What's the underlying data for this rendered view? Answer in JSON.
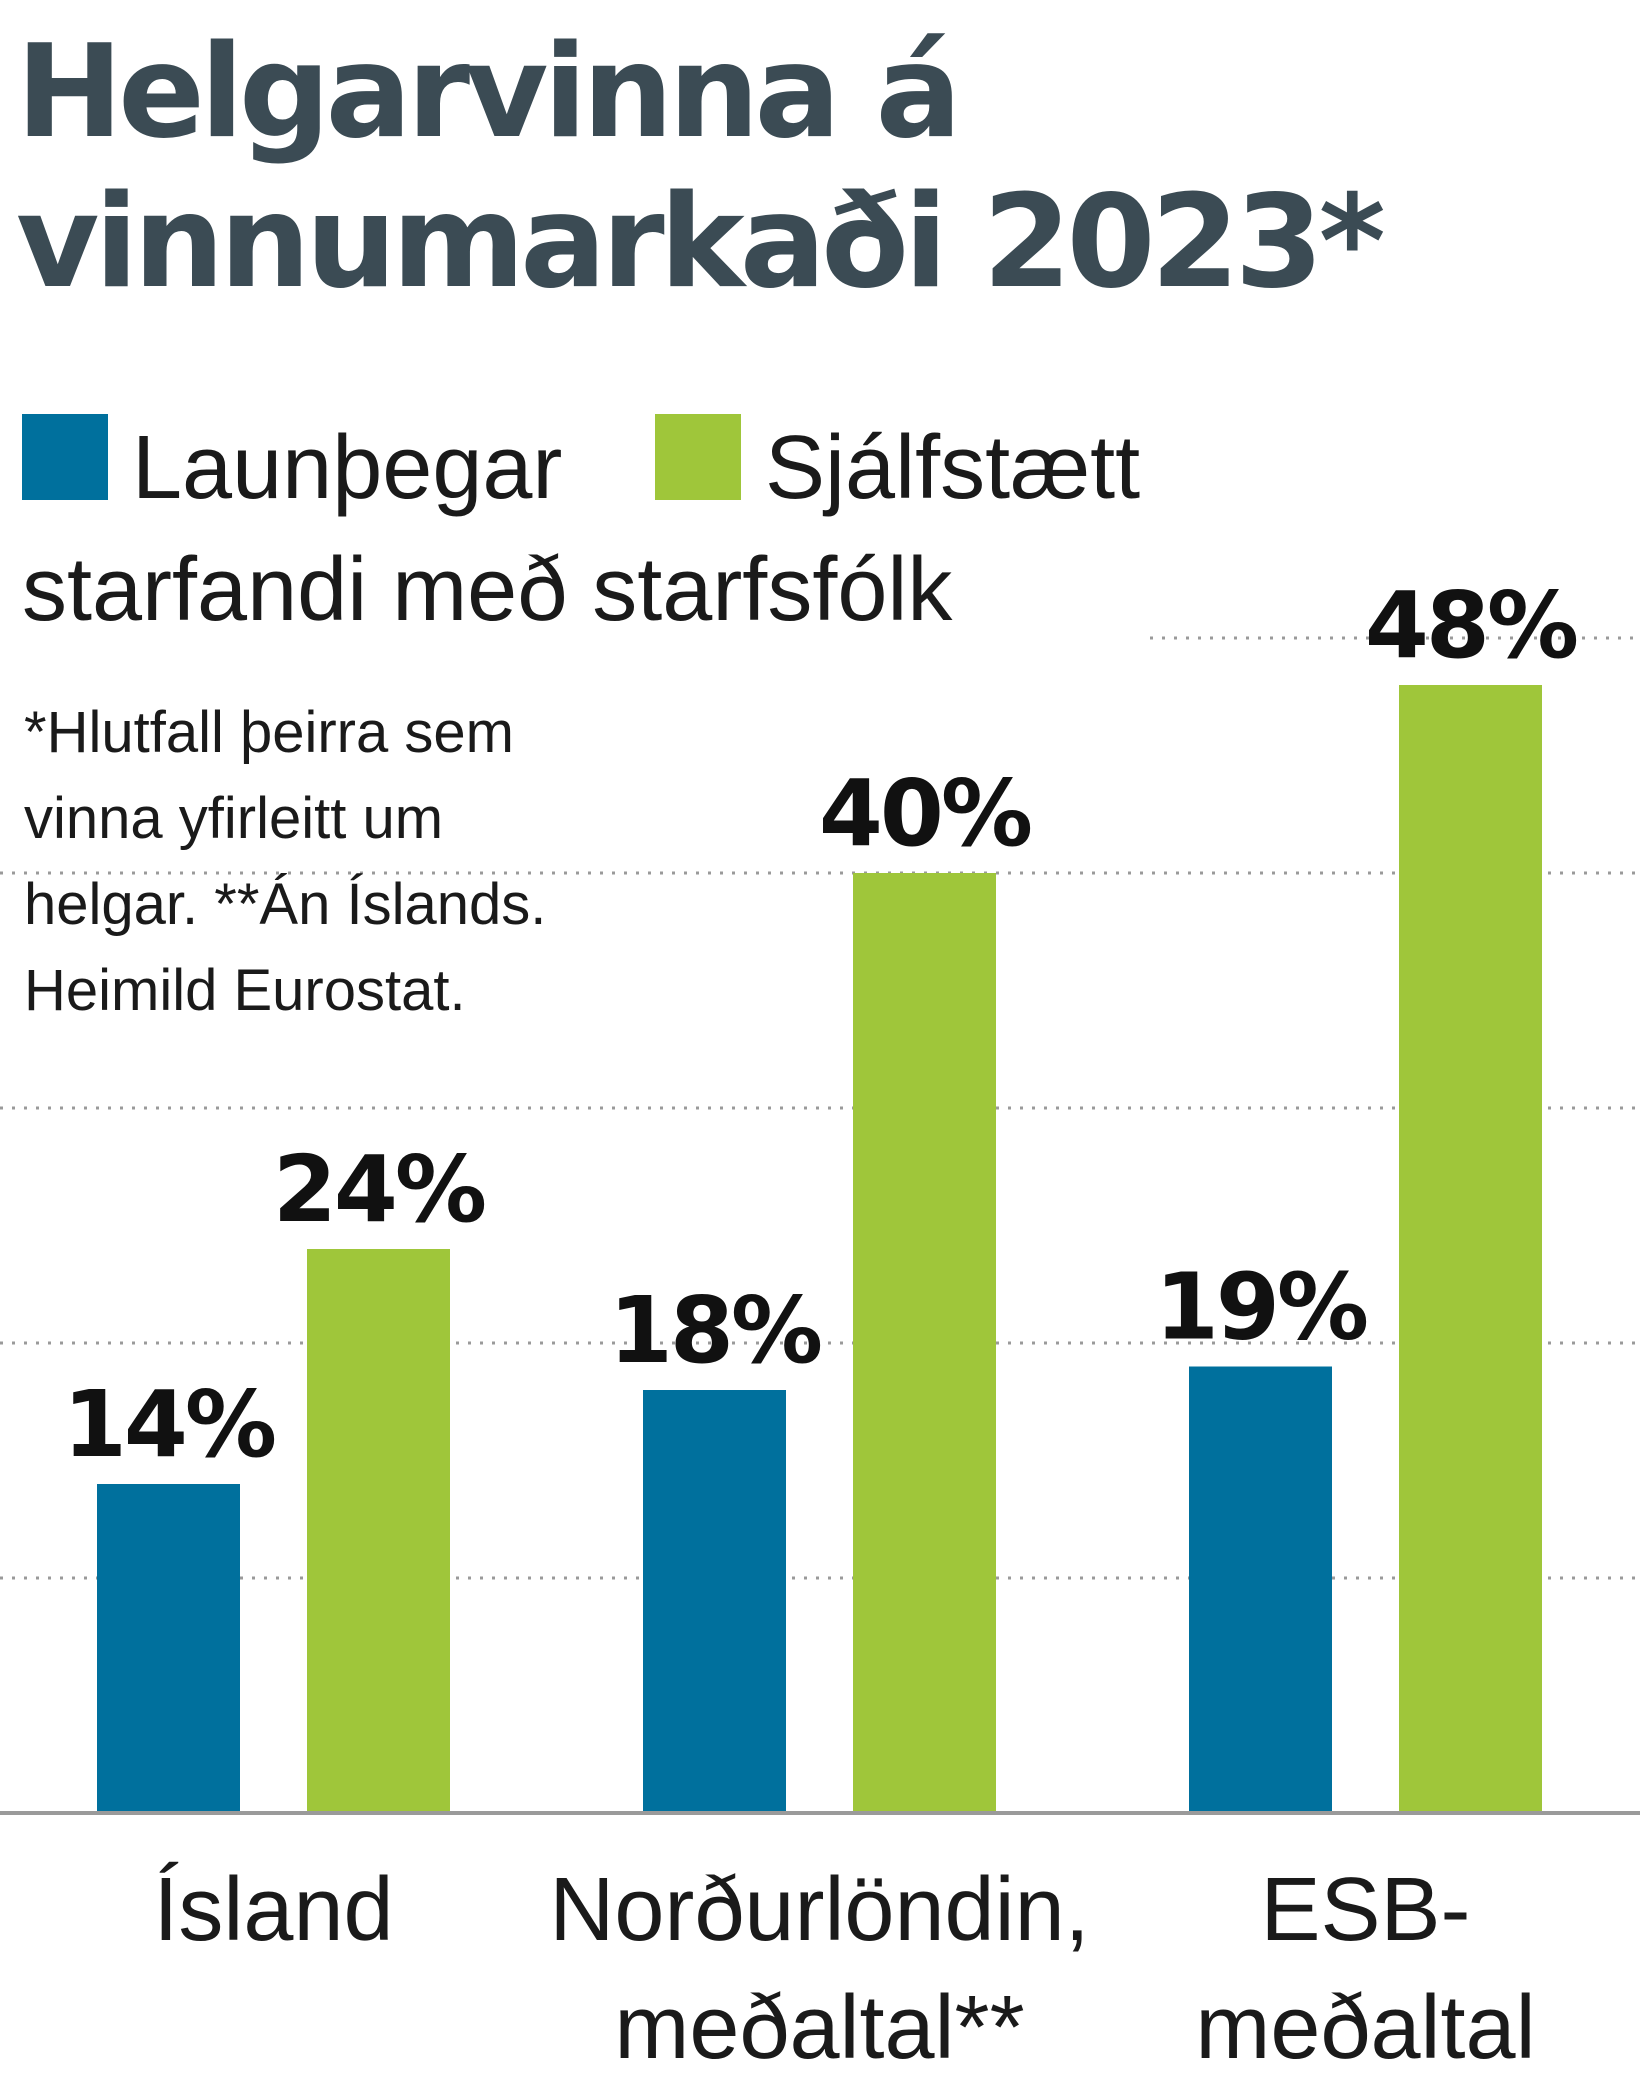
{
  "title_lines": [
    "Helgarvinna á",
    "vinnumarkaði 2023*"
  ],
  "legend": {
    "line1": [
      "Launþegar",
      "Sjálfstætt"
    ],
    "line2": "starfandi með starfsfólk"
  },
  "footnote": [
    "*Hlutfall þeirra sem",
    "vinna yfirleitt um",
    "helgar. **Án Íslands.",
    "Heimild Eurostat."
  ],
  "colors": {
    "title": "#3b4b54",
    "series1": "#00709d",
    "series2": "#9fc63a",
    "grid": "#9a9a9a",
    "baseline": "#9a9a9a"
  },
  "chart_data": {
    "type": "bar",
    "categories": [
      [
        "Ísland"
      ],
      [
        "Norðurlöndin,",
        "meðaltal**"
      ],
      [
        "ESB-",
        "meðaltal"
      ]
    ],
    "series": [
      {
        "name": "Launþegar",
        "values": [
          14,
          18,
          19
        ],
        "labels": [
          "14%",
          "18%",
          "19%"
        ]
      },
      {
        "name": "Sjálfstætt starfandi með starfsfólk",
        "values": [
          24,
          40,
          48
        ],
        "labels": [
          "24%",
          "40%",
          "48%"
        ]
      }
    ],
    "unit": "%",
    "ylim": [
      0,
      50
    ],
    "grid_values": [
      10,
      20,
      30,
      40,
      50
    ],
    "grid": true,
    "grid_style": "dotted",
    "legend_position": "top-left"
  }
}
